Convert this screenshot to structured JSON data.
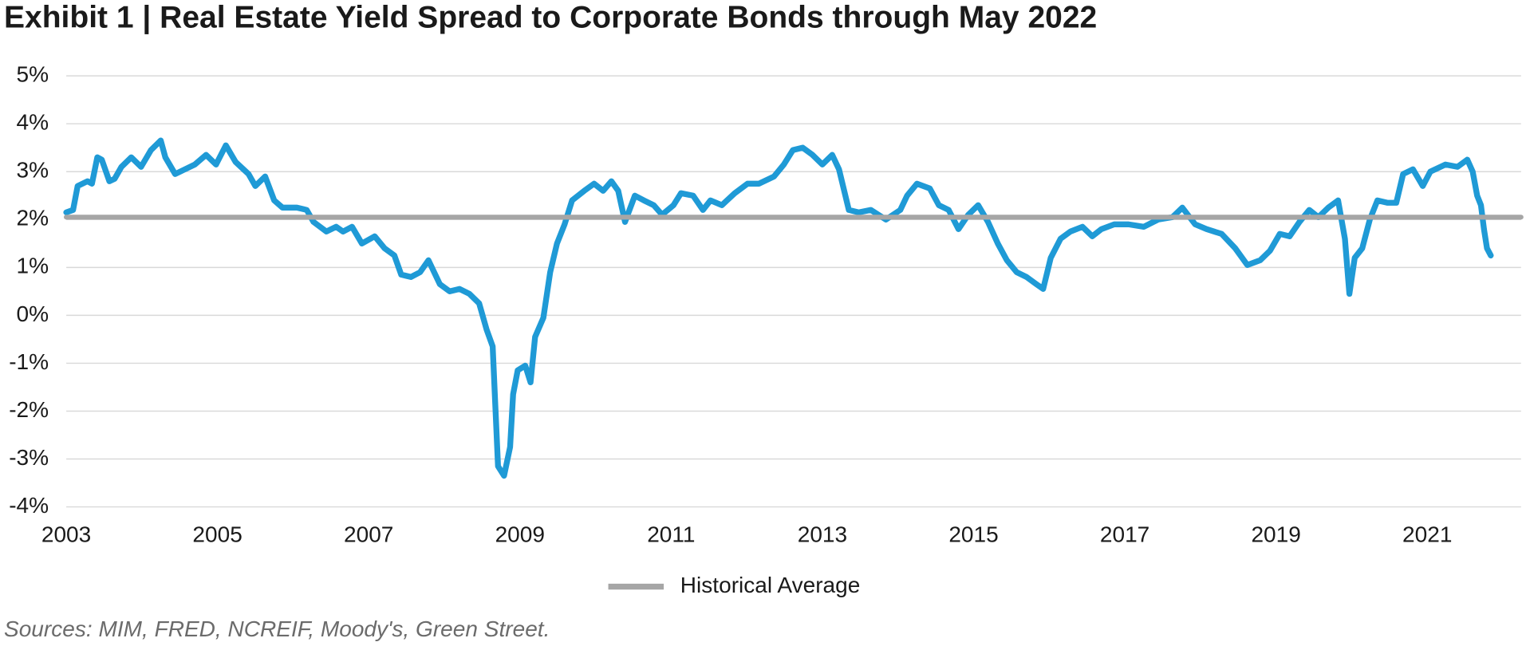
{
  "chart_data": {
    "type": "line",
    "title": "Exhibit 1 | Real Estate Yield Spread to Corporate Bonds through May 2022",
    "source": "Sources: MIM, FRED, NCREIF, Moody's, Green Street.",
    "xlim": [
      2003,
      2022.24
    ],
    "xticks": [
      2003,
      2005,
      2007,
      2009,
      2011,
      2013,
      2015,
      2017,
      2019,
      2021
    ],
    "ylim": [
      -4,
      5
    ],
    "yticks": [
      {
        "value": -4,
        "label": "-4%"
      },
      {
        "value": -3,
        "label": "-3%"
      },
      {
        "value": -2,
        "label": "-2%"
      },
      {
        "value": -1,
        "label": "-1%"
      },
      {
        "value": 0,
        "label": "0%"
      },
      {
        "value": 1,
        "label": "1%"
      },
      {
        "value": 2,
        "label": "2%"
      },
      {
        "value": 3,
        "label": "3%"
      },
      {
        "value": 4,
        "label": "4%"
      },
      {
        "value": 5,
        "label": "5%"
      }
    ],
    "grid": true,
    "legend": "bottom",
    "series": [
      {
        "color": "#1f9ad6",
        "x": [
          2003.0,
          2003.09,
          2003.15,
          2003.28,
          2003.34,
          2003.41,
          2003.47,
          2003.57,
          2003.64,
          2003.73,
          2003.86,
          2003.99,
          2004.12,
          2004.25,
          2004.31,
          2004.44,
          2004.57,
          2004.7,
          2004.85,
          2004.98,
          2005.11,
          2005.24,
          2005.41,
          2005.5,
          2005.63,
          2005.75,
          2005.86,
          2006.05,
          2006.18,
          2006.27,
          2006.44,
          2006.57,
          2006.66,
          2006.78,
          2006.91,
          2007.08,
          2007.21,
          2007.34,
          2007.43,
          2007.56,
          2007.68,
          2007.79,
          2007.94,
          2008.07,
          2008.2,
          2008.33,
          2008.46,
          2008.56,
          2008.64,
          2008.71,
          2008.79,
          2008.87,
          2008.91,
          2008.97,
          2009.07,
          2009.14,
          2009.2,
          2009.31,
          2009.4,
          2009.49,
          2009.59,
          2009.69,
          2009.85,
          2009.98,
          2010.1,
          2010.21,
          2010.3,
          2010.39,
          2010.52,
          2010.64,
          2010.77,
          2010.88,
          2011.03,
          2011.13,
          2011.29,
          2011.42,
          2011.52,
          2011.67,
          2011.84,
          2012.01,
          2012.16,
          2012.36,
          2012.49,
          2012.61,
          2012.74,
          2012.87,
          2013.0,
          2013.13,
          2013.22,
          2013.35,
          2013.48,
          2013.64,
          2013.84,
          2014.03,
          2014.12,
          2014.25,
          2014.42,
          2014.54,
          2014.67,
          2014.8,
          2014.93,
          2015.06,
          2015.19,
          2015.32,
          2015.44,
          2015.57,
          2015.7,
          2015.83,
          2015.92,
          2016.02,
          2016.15,
          2016.28,
          2016.44,
          2016.57,
          2016.69,
          2016.86,
          2017.05,
          2017.25,
          2017.44,
          2017.63,
          2017.76,
          2017.93,
          2018.08,
          2018.28,
          2018.46,
          2018.62,
          2018.79,
          2018.92,
          2019.05,
          2019.18,
          2019.31,
          2019.44,
          2019.56,
          2019.69,
          2019.82,
          2019.91,
          2019.97,
          2020.04,
          2020.14,
          2020.24,
          2020.34,
          2020.47,
          2020.59,
          2020.68,
          2020.81,
          2020.94,
          2021.04,
          2021.24,
          2021.4,
          2021.53,
          2021.6,
          2021.66,
          2021.71,
          2021.75,
          2021.79,
          2021.84
        ],
        "values": [
          2.15,
          2.2,
          2.7,
          2.8,
          2.75,
          3.3,
          3.25,
          2.8,
          2.85,
          3.1,
          3.3,
          3.1,
          3.45,
          3.65,
          3.3,
          2.95,
          3.05,
          3.15,
          3.35,
          3.15,
          3.55,
          3.2,
          2.95,
          2.7,
          2.9,
          2.4,
          2.25,
          2.25,
          2.2,
          1.95,
          1.75,
          1.85,
          1.75,
          1.85,
          1.5,
          1.65,
          1.4,
          1.25,
          0.85,
          0.8,
          0.9,
          1.15,
          0.65,
          0.5,
          0.55,
          0.45,
          0.25,
          -0.3,
          -0.65,
          -3.15,
          -3.35,
          -2.75,
          -1.65,
          -1.15,
          -1.05,
          -1.4,
          -0.45,
          -0.05,
          0.9,
          1.5,
          1.9,
          2.4,
          2.6,
          2.75,
          2.6,
          2.8,
          2.6,
          1.95,
          2.5,
          2.4,
          2.3,
          2.1,
          2.3,
          2.55,
          2.5,
          2.2,
          2.4,
          2.3,
          2.55,
          2.75,
          2.75,
          2.9,
          3.15,
          3.45,
          3.5,
          3.35,
          3.15,
          3.35,
          3.05,
          2.2,
          2.15,
          2.2,
          2.0,
          2.2,
          2.5,
          2.75,
          2.65,
          2.3,
          2.2,
          1.8,
          2.1,
          2.3,
          1.95,
          1.5,
          1.15,
          0.9,
          0.8,
          0.65,
          0.55,
          1.2,
          1.6,
          1.75,
          1.85,
          1.65,
          1.8,
          1.9,
          1.9,
          1.85,
          2.0,
          2.05,
          2.25,
          1.9,
          1.8,
          1.7,
          1.4,
          1.05,
          1.15,
          1.35,
          1.7,
          1.65,
          1.95,
          2.2,
          2.05,
          2.25,
          2.4,
          1.6,
          0.45,
          1.2,
          1.4,
          2.0,
          2.4,
          2.35,
          2.35,
          2.95,
          3.05,
          2.7,
          3.0,
          3.15,
          3.1,
          3.25,
          3.0,
          2.5,
          2.3,
          1.8,
          1.4,
          1.25
        ]
      },
      {
        "name": "Historical Average",
        "color": "#a6a6a6",
        "x": [
          2003,
          2022.24
        ],
        "values": [
          2.05,
          2.05
        ]
      }
    ]
  }
}
